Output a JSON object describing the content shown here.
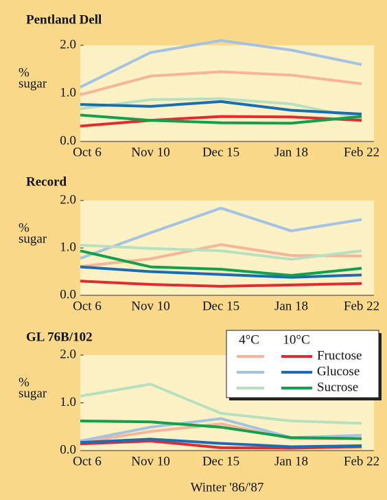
{
  "chart_data": [
    {
      "type": "line",
      "title": "Pentland Dell",
      "categories": [
        "Oct 6",
        "Nov 10",
        "Dec 15",
        "Jan 18",
        "Feb 22"
      ],
      "ylim": [
        0,
        2
      ],
      "yticks": [
        {
          "value": 0,
          "label": "0.0"
        },
        {
          "value": 1,
          "label": "1.0"
        },
        {
          "value": 2,
          "label": "2.0"
        }
      ],
      "ylabel": [
        "%",
        "sugar"
      ],
      "series": [
        {
          "color": "#f6b49a",
          "values": [
            0.97,
            1.36,
            1.45,
            1.38,
            1.2
          ]
        },
        {
          "color": "#e32b2f",
          "values": [
            0.32,
            0.44,
            0.52,
            0.51,
            0.44
          ]
        },
        {
          "color": "#a4c2e2",
          "values": [
            1.13,
            1.85,
            2.1,
            1.9,
            1.6
          ]
        },
        {
          "color": "#1a6cb3",
          "values": [
            0.77,
            0.73,
            0.83,
            0.65,
            0.57
          ]
        },
        {
          "color": "#b7e0be",
          "values": [
            0.68,
            0.87,
            0.89,
            0.78,
            0.48
          ]
        },
        {
          "color": "#12a04c",
          "values": [
            0.55,
            0.44,
            0.39,
            0.38,
            0.52
          ]
        }
      ]
    },
    {
      "type": "line",
      "title": "Record",
      "categories": [
        "Oct 6",
        "Nov 10",
        "Dec 15",
        "Jan 18",
        "Feb 22"
      ],
      "ylim": [
        0,
        2
      ],
      "yticks": [
        {
          "value": 0,
          "label": "0.0"
        },
        {
          "value": 1,
          "label": "1.0"
        },
        {
          "value": 2,
          "label": "2.0"
        }
      ],
      "ylabel": [
        "%",
        "sugar"
      ],
      "series": [
        {
          "color": "#f6b49a",
          "values": [
            0.61,
            0.77,
            1.07,
            0.84,
            0.83
          ]
        },
        {
          "color": "#e32b2f",
          "values": [
            0.3,
            0.23,
            0.19,
            0.22,
            0.25
          ]
        },
        {
          "color": "#a4c2e2",
          "values": [
            0.78,
            1.32,
            1.84,
            1.36,
            1.6
          ]
        },
        {
          "color": "#1a6cb3",
          "values": [
            0.6,
            0.5,
            0.44,
            0.38,
            0.43
          ]
        },
        {
          "color": "#b7e0be",
          "values": [
            1.06,
            0.99,
            0.94,
            0.76,
            0.94
          ]
        },
        {
          "color": "#12a04c",
          "values": [
            0.94,
            0.6,
            0.55,
            0.42,
            0.57
          ]
        }
      ]
    },
    {
      "type": "line",
      "title": "GL 76B/102",
      "categories": [
        "Oct 6",
        "Nov 10",
        "Dec 15",
        "Jan 18",
        "Feb 22"
      ],
      "ylim": [
        0,
        2
      ],
      "yticks": [
        {
          "value": 0,
          "label": "0.0"
        },
        {
          "value": 1,
          "label": "1.0"
        },
        {
          "value": 2,
          "label": "2.0"
        }
      ],
      "ylabel": [
        "%",
        "sugar"
      ],
      "xlabel": "Winter '86/'87",
      "legend": {
        "temperatures": [
          "4°C",
          "10°C"
        ],
        "sugars": [
          "Fructose",
          "Glucose",
          "Sucrose"
        ]
      },
      "series": [
        {
          "color": "#f6b49a",
          "values": [
            0.17,
            0.4,
            0.56,
            0.25,
            0.25
          ]
        },
        {
          "color": "#e32b2f",
          "values": [
            0.14,
            0.2,
            0.06,
            0.05,
            0.08
          ]
        },
        {
          "color": "#a4c2e2",
          "values": [
            0.2,
            0.49,
            0.67,
            0.27,
            0.32
          ]
        },
        {
          "color": "#1a6cb3",
          "values": [
            0.17,
            0.24,
            0.15,
            0.08,
            0.1
          ]
        },
        {
          "color": "#b7e0be",
          "values": [
            1.14,
            1.39,
            0.78,
            0.62,
            0.57
          ]
        },
        {
          "color": "#12a04c",
          "values": [
            0.62,
            0.6,
            0.49,
            0.27,
            0.25
          ]
        }
      ]
    }
  ]
}
